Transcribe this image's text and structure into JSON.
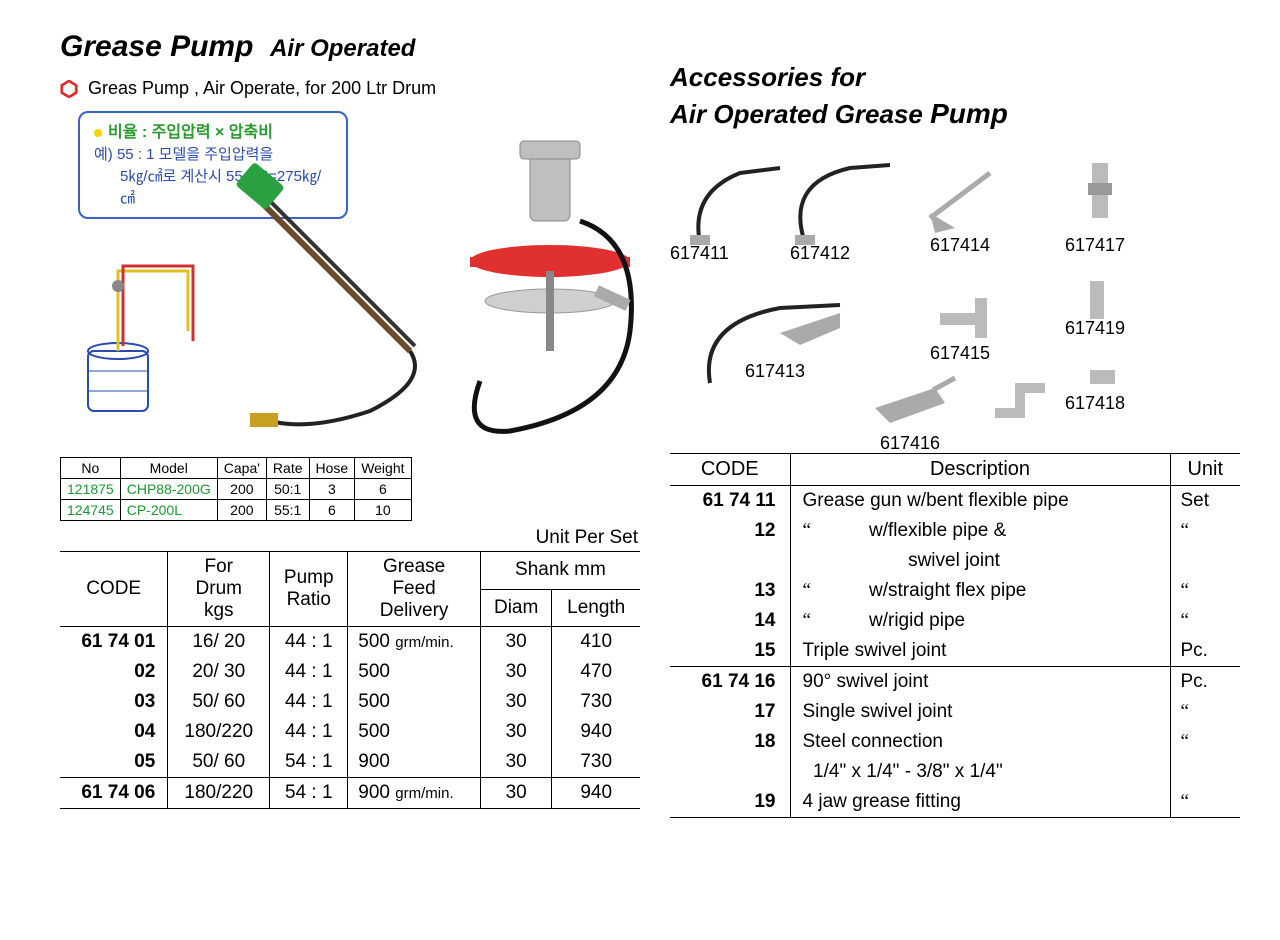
{
  "left": {
    "title_main": "Grease Pump",
    "title_sub": "Air Operated",
    "bullet_text": "Greas Pump , Air Operate, for 200 Ltr Drum",
    "kbox": {
      "l1": "비율 : 주입압력 × 압축비",
      "l2": "예) 55 : 1 모델을 주입압력을",
      "l3": "5㎏/㎠로 계산시 55 × 5=275㎏/㎠"
    },
    "model_table": {
      "headers": [
        "No",
        "Model",
        "Capa'",
        "Rate",
        "Hose",
        "Weight"
      ],
      "rows": [
        [
          "121875",
          "CHP88-200G",
          "200",
          "50:1",
          "3",
          "6"
        ],
        [
          "124745",
          "CP-200L",
          "200",
          "55:1",
          "6",
          "10"
        ]
      ]
    },
    "unit_per_set": "Unit Per Set",
    "spec_table": {
      "head": {
        "code": "CODE",
        "drum": "For\nDrum\nkgs",
        "ratio": "Pump\nRatio",
        "feed": "Grease\nFeed\nDelivery",
        "shank": "Shank mm",
        "diam": "Diam",
        "length": "Length"
      },
      "group1": [
        {
          "code": "61 74 01",
          "drum": "16/ 20",
          "ratio": "44 : 1",
          "feed": "500 grm/min.",
          "diam": "30",
          "length": "410"
        },
        {
          "code": "02",
          "drum": "20/ 30",
          "ratio": "44 : 1",
          "feed": "500",
          "diam": "30",
          "length": "470"
        },
        {
          "code": "03",
          "drum": "50/ 60",
          "ratio": "44 : 1",
          "feed": "500",
          "diam": "30",
          "length": "730"
        },
        {
          "code": "04",
          "drum": "180/220",
          "ratio": "44 : 1",
          "feed": "500",
          "diam": "30",
          "length": "940"
        },
        {
          "code": "05",
          "drum": "50/ 60",
          "ratio": "54 : 1",
          "feed": "900",
          "diam": "30",
          "length": "730"
        }
      ],
      "group2": [
        {
          "code": "61 74 06",
          "drum": "180/220",
          "ratio": "54 : 1",
          "feed": "900 grm/min.",
          "diam": "30",
          "length": "940"
        }
      ]
    }
  },
  "right": {
    "title1": "Accessories for",
    "title2a": "Air Operated Grease ",
    "title2b": "Pump",
    "labels": {
      "l11": "617411",
      "l12": "617412",
      "l13": "617413",
      "l14": "617414",
      "l15": "617415",
      "l16": "617416",
      "l17": "617417",
      "l18": "617418",
      "l19": "617419"
    },
    "acc_table": {
      "headers": {
        "code": "CODE",
        "desc": "Description",
        "unit": "Unit"
      },
      "g1": [
        {
          "code": "61 74 11",
          "desc": "Grease gun w/bent flexible pipe",
          "unit": "Set"
        },
        {
          "code": "12",
          "desc": "\"           w/flexible pipe &",
          "unit": "\""
        },
        {
          "code": "",
          "desc": "                    swivel joint",
          "unit": ""
        },
        {
          "code": "13",
          "desc": "\"           w/straight flex pipe",
          "unit": "\""
        },
        {
          "code": "14",
          "desc": "\"           w/rigid pipe",
          "unit": "\""
        },
        {
          "code": "15",
          "desc": "Triple swivel joint",
          "unit": "Pc."
        }
      ],
      "g2": [
        {
          "code": "61 74 16",
          "desc": "90° swivel joint",
          "unit": "Pc."
        },
        {
          "code": "17",
          "desc": "Single swivel joint",
          "unit": "\""
        },
        {
          "code": "18",
          "desc": "Steel connection",
          "unit": "\""
        },
        {
          "code": "",
          "desc": "  1/4\" x 1/4\" - 3/8\" x 1/4\"",
          "unit": ""
        },
        {
          "code": "19",
          "desc": "4 jaw grease fitting",
          "unit": "\""
        }
      ]
    }
  },
  "colors": {
    "hex_red": "#e52a2a",
    "blue_border": "#3a62c8",
    "green_text": "#2a9a2e",
    "blue_text": "#2a4bb0",
    "green_no": "#1a9a30"
  }
}
